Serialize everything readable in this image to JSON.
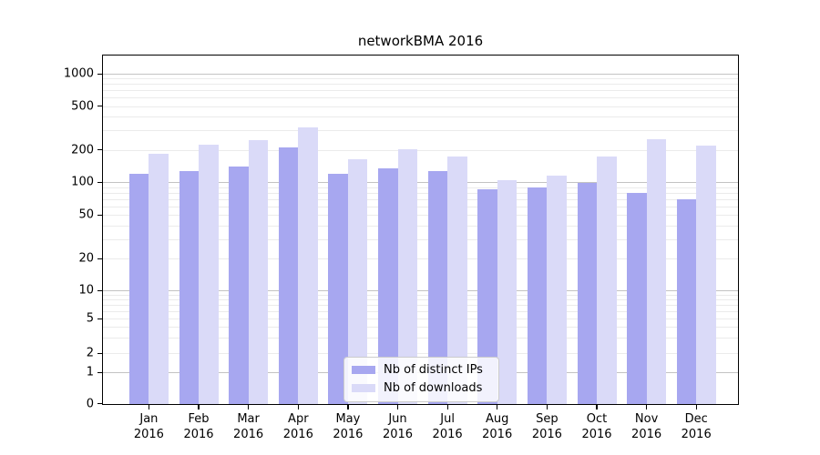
{
  "title": "networkBMA 2016",
  "chart_data": {
    "type": "bar",
    "title": "networkBMA 2016",
    "categories": [
      "Jan 2016",
      "Feb 2016",
      "Mar 2016",
      "Apr 2016",
      "May 2016",
      "Jun 2016",
      "Jul 2016",
      "Aug 2016",
      "Sep 2016",
      "Oct 2016",
      "Nov 2016",
      "Dec 2016"
    ],
    "series": [
      {
        "name": "Nb of distinct IPs",
        "color": "#a7a7f0",
        "values": [
          120,
          127,
          140,
          210,
          120,
          135,
          128,
          86,
          90,
          100,
          80,
          70
        ]
      },
      {
        "name": "Nb of downloads",
        "color": "#dadaf8",
        "values": [
          185,
          225,
          245,
          320,
          165,
          205,
          175,
          106,
          117,
          175,
          250,
          220
        ]
      }
    ],
    "xlabel": "",
    "ylabel": "",
    "yscale": "symlog",
    "yticks": [
      0,
      1,
      2,
      5,
      10,
      20,
      50,
      100,
      200,
      500,
      1000
    ],
    "ytick_labels": [
      "0",
      "1",
      "2",
      "5",
      "10",
      "20",
      "50",
      "100",
      "200",
      "500",
      "1000"
    ],
    "ylim": [
      0,
      1500
    ],
    "grid": true,
    "legend_position": "lower center"
  },
  "colors": {
    "series_ips": "#a7a7f0",
    "series_downloads": "#dadaf8",
    "major_grid": "#c3c3c3",
    "minor_grid": "#ebebeb",
    "axis": "#000000"
  }
}
